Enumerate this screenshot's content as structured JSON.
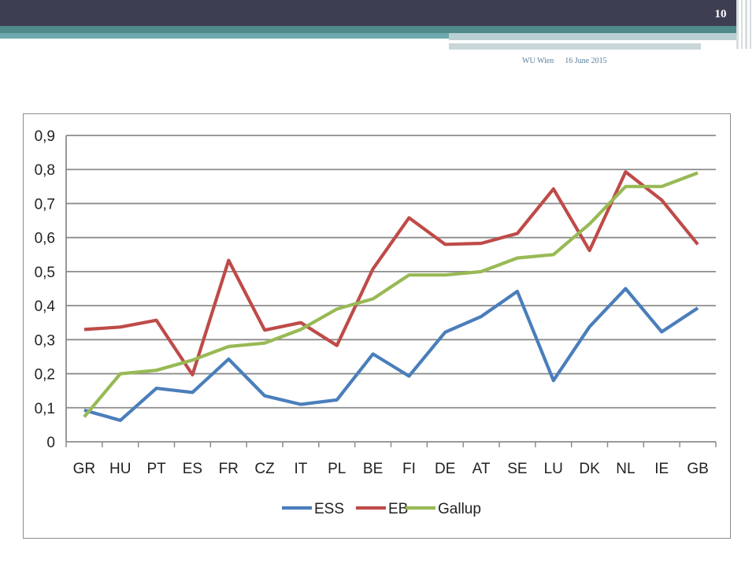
{
  "slide": {
    "page_number": "10",
    "footer_org": "WU Wien",
    "footer_date": "16 June 2015"
  },
  "chart_data": {
    "type": "line",
    "categories": [
      "GR",
      "HU",
      "PT",
      "ES",
      "FR",
      "CZ",
      "IT",
      "PL",
      "BE",
      "FI",
      "DE",
      "AT",
      "SE",
      "LU",
      "DK",
      "NL",
      "IE",
      "GB"
    ],
    "ylim": [
      0,
      0.9
    ],
    "yticks": [
      0,
      0.1,
      0.2,
      0.3,
      0.4,
      0.5,
      0.6,
      0.7,
      0.8,
      0.9
    ],
    "ytick_labels": [
      "0",
      "0,1",
      "0,2",
      "0,3",
      "0,4",
      "0,5",
      "0,6",
      "0,7",
      "0,8",
      "0,9"
    ],
    "grid": true,
    "legend_position": "bottom",
    "series": [
      {
        "name": "ESS",
        "color": "#4a7ebb",
        "values": [
          0.093,
          0.063,
          0.157,
          0.145,
          0.243,
          0.135,
          0.11,
          0.123,
          0.258,
          0.193,
          0.322,
          0.368,
          0.442,
          0.18,
          0.338,
          0.45,
          0.323,
          0.393
        ]
      },
      {
        "name": "EB",
        "color": "#be4b48",
        "values": [
          0.33,
          0.337,
          0.357,
          0.197,
          0.533,
          0.328,
          0.35,
          0.283,
          0.508,
          0.658,
          0.58,
          0.583,
          0.612,
          0.743,
          0.562,
          0.793,
          0.71,
          0.58
        ]
      },
      {
        "name": "Gallup",
        "color": "#98b954",
        "values": [
          0.073,
          0.2,
          0.21,
          0.24,
          0.28,
          0.29,
          0.33,
          0.39,
          0.42,
          0.49,
          0.49,
          0.5,
          0.54,
          0.55,
          0.64,
          0.75,
          0.75,
          0.79
        ]
      }
    ]
  }
}
